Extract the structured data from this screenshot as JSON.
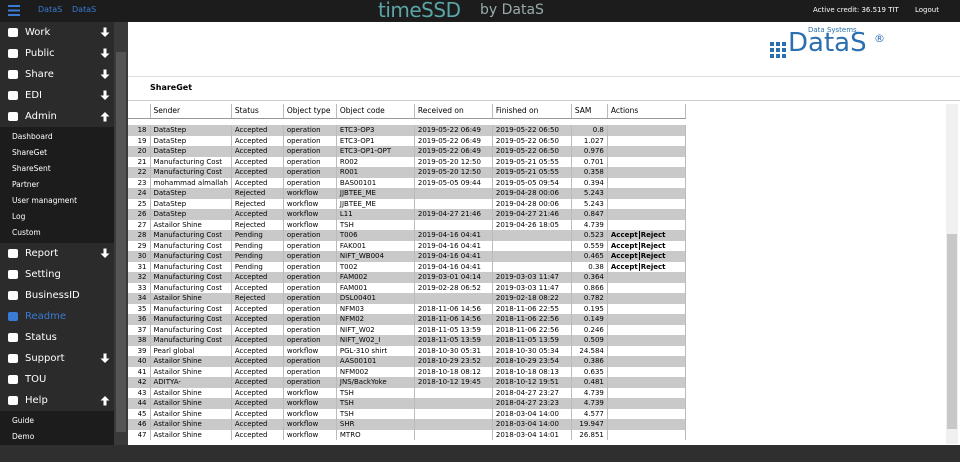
{
  "topbar": {
    "brand": [
      "DataS",
      "DataS"
    ],
    "logo": {
      "main": "timeSSD",
      "sub": "by DataS"
    },
    "credit": "Active credit: 36.519 TIT",
    "logout": "Logout"
  },
  "sidebar": {
    "items": [
      {
        "label": "Work",
        "arrow": "down"
      },
      {
        "label": "Public",
        "arrow": "down"
      },
      {
        "label": "Share",
        "arrow": "down"
      },
      {
        "label": "EDI",
        "arrow": "down"
      },
      {
        "label": "Admin",
        "arrow": "up",
        "children": [
          "Dashboard",
          "ShareGet",
          "ShareSent",
          "Partner",
          "User managment",
          "Log",
          "Custom"
        ]
      },
      {
        "label": "Report",
        "arrow": "down"
      },
      {
        "label": "Setting"
      },
      {
        "label": "BusinessID"
      },
      {
        "label": "Readme",
        "active": true
      },
      {
        "label": "Status"
      },
      {
        "label": "Support",
        "arrow": "down"
      },
      {
        "label": "TOU"
      },
      {
        "label": "Help",
        "arrow": "up",
        "children": [
          "Guide",
          "Demo"
        ]
      }
    ]
  },
  "company_logo": {
    "tagline": "Data Systems",
    "name": "DataS",
    "mark": "®"
  },
  "section_title": "ShareGet",
  "table": {
    "headers": [
      null,
      "Sender",
      "Status",
      "Object type",
      "Object code",
      "Received on",
      "Finished on",
      "SAM",
      "Actions"
    ],
    "rows": [
      [
        "18",
        "DataStep",
        "Accepted",
        "operation",
        "ETC3-OP3",
        "2019-05-22 06:49",
        "2019-05-22 06:50",
        "0.8",
        null
      ],
      [
        "19",
        "DataStep",
        "Accepted",
        "operation",
        "ETC3-OP1",
        "2019-05-22 06:49",
        "2019-05-22 06:50",
        "1.027",
        null
      ],
      [
        "20",
        "DataStep",
        "Accepted",
        "operation",
        "ETC3-OP1-OPT",
        "2019-05-22 06:49",
        "2019-05-22 06:50",
        "0.976",
        null
      ],
      [
        "21",
        "Manufacturing Cost",
        "Accepted",
        "operation",
        "R002",
        "2019-05-20 12:50",
        "2019-05-21 05:55",
        "0.701",
        null
      ],
      [
        "22",
        "Manufacturing Cost",
        "Accepted",
        "operation",
        "R001",
        "2019-05-20 12:50",
        "2019-05-21 05:55",
        "0.358",
        null
      ],
      [
        "23",
        "mohammad almallah",
        "Accepted",
        "operation",
        "BAS00101",
        "2019-05-05 09:44",
        "2019-05-05 09:54",
        "0.394",
        null
      ],
      [
        "24",
        "DataStep",
        "Rejected",
        "workflow",
        "JJBTEE_ME",
        null,
        "2019-04-28 00:06",
        "5.243",
        null
      ],
      [
        "25",
        "DataStep",
        "Rejected",
        "workflow",
        "JJBTEE_ME",
        null,
        "2019-04-28 00:06",
        "5.243",
        null
      ],
      [
        "26",
        "DataStep",
        "Accepted",
        "workflow",
        "L11",
        "2019-04-27 21:46",
        "2019-04-27 21:46",
        "0.847",
        null
      ],
      [
        "27",
        "Astailor Shine",
        "Rejected",
        "workflow",
        "TSH",
        null,
        "2019-04-26 18:05",
        "4.739",
        null
      ],
      [
        "28",
        "Manufacturing Cost",
        "Pending",
        "operation",
        "T006",
        "2019-04-16 04:41",
        null,
        "0.523",
        [
          "Accept",
          "Reject"
        ]
      ],
      [
        "29",
        "Manufacturing Cost",
        "Pending",
        "operation",
        "FAK001",
        "2019-04-16 04:41",
        null,
        "0.559",
        [
          "Accept",
          "Reject"
        ]
      ],
      [
        "30",
        "Manufacturing Cost",
        "Pending",
        "operation",
        "NIFT_WB004",
        "2019-04-16 04:41",
        null,
        "0.465",
        [
          "Accept",
          "Reject"
        ]
      ],
      [
        "31",
        "Manufacturing Cost",
        "Pending",
        "operation",
        "T002",
        "2019-04-16 04:41",
        null,
        "0.38",
        [
          "Accept",
          "Reject"
        ]
      ],
      [
        "32",
        "Manufacturing Cost",
        "Accepted",
        "operation",
        "FAM002",
        "2019-03-01 04:14",
        "2019-03-03 11:47",
        "0.364",
        null
      ],
      [
        "33",
        "Manufacturing Cost",
        "Accepted",
        "operation",
        "FAM001",
        "2019-02-28 06:52",
        "2019-03-03 11:47",
        "0.866",
        null
      ],
      [
        "34",
        "Astailor Shine",
        "Rejected",
        "operation",
        "DSL00401",
        null,
        "2019-02-18 08:22",
        "0.782",
        null
      ],
      [
        "35",
        "Manufacturing Cost",
        "Accepted",
        "operation",
        "NFM03",
        "2018-11-06 14:56",
        "2018-11-06 22:55",
        "0.195",
        null
      ],
      [
        "36",
        "Manufacturing Cost",
        "Accepted",
        "operation",
        "NFM02",
        "2018-11-06 14:56",
        "2018-11-06 22:56",
        "0.149",
        null
      ],
      [
        "37",
        "Manufacturing Cost",
        "Accepted",
        "operation",
        "NIFT_W02",
        "2018-11-05 13:59",
        "2018-11-06 22:56",
        "0.246",
        null
      ],
      [
        "38",
        "Manufacturing Cost",
        "Accepted",
        "operation",
        "NIFT_W02_I",
        "2018-11-05 13:59",
        "2018-11-05 13:59",
        "0.509",
        null
      ],
      [
        "39",
        "Pearl global",
        "Accepted",
        "workflow",
        "PGL-310 shirt",
        "2018-10-30 05:31",
        "2018-10-30 05:34",
        "24.584",
        null
      ],
      [
        "40",
        "Astailor Shine",
        "Accepted",
        "operation",
        "AAS00101",
        "2018-10-29 23:52",
        "2018-10-29 23:54",
        "0.386",
        null
      ],
      [
        "41",
        "Astailor Shine",
        "Accepted",
        "operation",
        "NFM002",
        "2018-10-18 08:12",
        "2018-10-18 08:13",
        "0.635",
        null
      ],
      [
        "42",
        "ADITYA-",
        "Accepted",
        "operation",
        "JNS/BackYoke",
        "2018-10-12 19:45",
        "2018-10-12 19:51",
        "0.481",
        null
      ],
      [
        "43",
        "Astailor Shine",
        "Accepted",
        "workflow",
        "TSH",
        null,
        "2018-04-27 23:27",
        "4.739",
        null
      ],
      [
        "44",
        "Astailor Shine",
        "Accepted",
        "workflow",
        "TSH",
        null,
        "2018-04-27 23:23",
        "4.739",
        null
      ],
      [
        "45",
        "Astailor Shine",
        "Accepted",
        "workflow",
        "TSH",
        null,
        "2018-03-04 14:00",
        "4.577",
        null
      ],
      [
        "46",
        "Astailor Shine",
        "Accepted",
        "workflow",
        "SHR",
        null,
        "2018-03-04 14:00",
        "19.947",
        null
      ],
      [
        "47",
        "Astailor Shine",
        "Accepted",
        "workflow",
        "MTRO",
        null,
        "2018-03-04 14:01",
        "26.851",
        null
      ]
    ]
  }
}
